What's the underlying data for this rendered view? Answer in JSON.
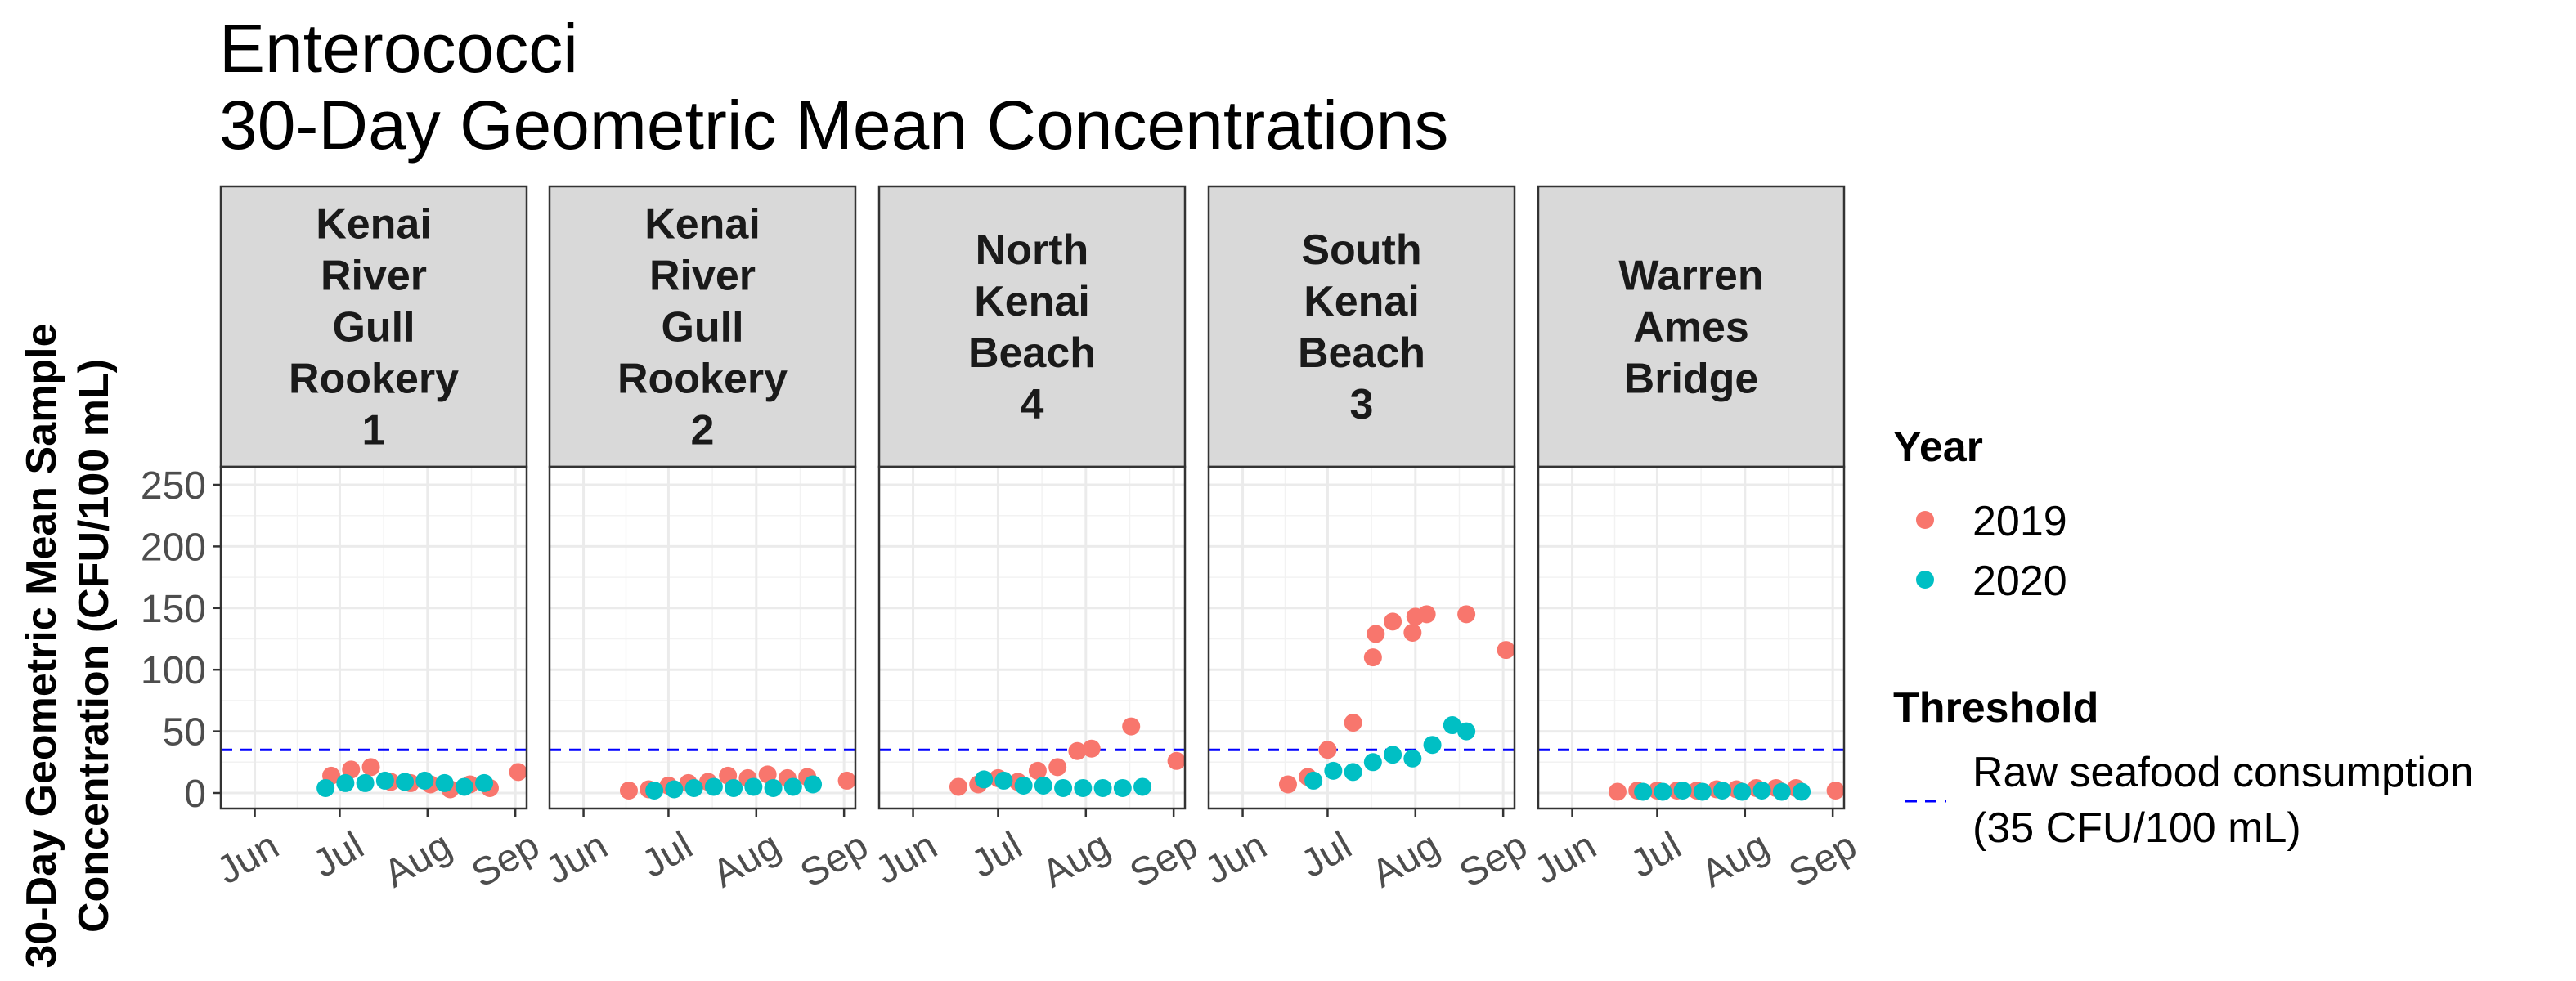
{
  "chart_data": {
    "type": "scatter",
    "title": "Enterococci",
    "subtitle": "30-Day Geometric Mean Concentrations",
    "ylabel_line1": "30-Day Geometric Mean Sample",
    "ylabel_line2": "Concentration (CFU/100 mL)",
    "xlabel": "",
    "ylim": [
      0,
      260
    ],
    "y_ticks": [
      0,
      50,
      100,
      150,
      200,
      250
    ],
    "x_ticks": [
      "Jun",
      "Jul",
      "Aug",
      "Sep"
    ],
    "x_tick_days": [
      152,
      182,
      213,
      244
    ],
    "xlim_days": [
      140,
      248
    ],
    "grid": true,
    "threshold": {
      "value": 35,
      "color": "#0000ff"
    },
    "colors": {
      "2019": "#f8766d",
      "2020": "#00bfc4"
    },
    "legend": {
      "year_title": "Year",
      "year_items": [
        "2019",
        "2020"
      ],
      "threshold_title": "Threshold",
      "threshold_label_line1": "Raw seafood consumption",
      "threshold_label_line2": "(35 CFU/100 mL)"
    },
    "facets": [
      {
        "label_lines": [
          "Kenai",
          "River",
          "Gull",
          "Rookery",
          "1"
        ],
        "series": [
          {
            "name": "2019",
            "x": [
              "2019-06-28",
              "2019-07-05",
              "2019-07-12",
              "2019-07-19",
              "2019-07-26",
              "2019-08-02",
              "2019-08-09",
              "2019-08-16",
              "2019-08-23",
              "2019-09-02"
            ],
            "y": [
              14,
              19,
              21,
              9,
              8,
              7,
              3,
              7,
              4,
              17
            ]
          },
          {
            "name": "2020",
            "x": [
              "2020-06-25",
              "2020-07-02",
              "2020-07-09",
              "2020-07-16",
              "2020-07-23",
              "2020-07-30",
              "2020-08-06",
              "2020-08-13",
              "2020-08-20"
            ],
            "y": [
              4,
              8,
              8,
              10,
              9,
              10,
              8,
              5,
              8
            ]
          }
        ]
      },
      {
        "label_lines": [
          "Kenai",
          "River",
          "Gull",
          "Rookery",
          "2"
        ],
        "series": [
          {
            "name": "2019",
            "x": [
              "2019-06-17",
              "2019-06-24",
              "2019-07-01",
              "2019-07-08",
              "2019-07-15",
              "2019-07-22",
              "2019-07-29",
              "2019-08-05",
              "2019-08-12",
              "2019-08-19",
              "2019-09-02"
            ],
            "y": [
              2,
              3,
              6,
              8,
              9,
              14,
              12,
              15,
              12,
              13,
              10
            ]
          },
          {
            "name": "2020",
            "x": [
              "2020-06-25",
              "2020-07-02",
              "2020-07-09",
              "2020-07-16",
              "2020-07-23",
              "2020-07-30",
              "2020-08-06",
              "2020-08-13",
              "2020-08-20"
            ],
            "y": [
              2,
              3,
              4,
              5,
              4,
              5,
              4,
              5,
              7
            ]
          }
        ]
      },
      {
        "label_lines": [
          "North",
          "Kenai",
          "Beach",
          "4"
        ],
        "series": [
          {
            "name": "2019",
            "x": [
              "2019-06-17",
              "2019-06-24",
              "2019-07-01",
              "2019-07-08",
              "2019-07-15",
              "2019-07-22",
              "2019-07-29",
              "2019-08-03",
              "2019-08-17",
              "2019-09-02"
            ],
            "y": [
              5,
              7,
              12,
              9,
              18,
              21,
              34,
              36,
              54,
              26
            ]
          },
          {
            "name": "2020",
            "x": [
              "2020-06-25",
              "2020-07-02",
              "2020-07-09",
              "2020-07-16",
              "2020-07-23",
              "2020-07-30",
              "2020-08-06",
              "2020-08-13",
              "2020-08-20"
            ],
            "y": [
              11,
              10,
              6,
              6,
              4,
              4,
              4,
              4,
              5
            ]
          }
        ]
      },
      {
        "label_lines": [
          "South",
          "Kenai",
          "Beach",
          "3"
        ],
        "series": [
          {
            "name": "2019",
            "x": [
              "2019-06-17",
              "2019-06-24",
              "2019-07-01",
              "2019-07-10",
              "2019-07-17",
              "2019-07-18",
              "2019-07-24",
              "2019-07-31",
              "2019-08-01",
              "2019-08-05",
              "2019-08-19",
              "2019-09-02"
            ],
            "y": [
              7,
              13,
              35,
              57,
              110,
              129,
              139,
              130,
              143,
              145,
              145,
              116
            ]
          },
          {
            "name": "2020",
            "x": [
              "2020-06-25",
              "2020-07-02",
              "2020-07-09",
              "2020-07-16",
              "2020-07-23",
              "2020-07-30",
              "2020-08-06",
              "2020-08-13",
              "2020-08-18"
            ],
            "y": [
              10,
              18,
              17,
              25,
              31,
              28,
              39,
              55,
              50
            ]
          }
        ]
      },
      {
        "label_lines": [
          "Warren",
          "Ames",
          "Bridge"
        ],
        "series": [
          {
            "name": "2019",
            "x": [
              "2019-06-17",
              "2019-06-24",
              "2019-07-01",
              "2019-07-08",
              "2019-07-15",
              "2019-07-22",
              "2019-07-29",
              "2019-08-05",
              "2019-08-12",
              "2019-08-19",
              "2019-09-02"
            ],
            "y": [
              1,
              2,
              2,
              2,
              2,
              3,
              3,
              4,
              4,
              4,
              2
            ]
          },
          {
            "name": "2020",
            "x": [
              "2020-06-25",
              "2020-07-02",
              "2020-07-09",
              "2020-07-16",
              "2020-07-23",
              "2020-07-30",
              "2020-08-06",
              "2020-08-13",
              "2020-08-20"
            ],
            "y": [
              1,
              1,
              2,
              1,
              2,
              1,
              2,
              1,
              1
            ]
          }
        ]
      }
    ]
  }
}
